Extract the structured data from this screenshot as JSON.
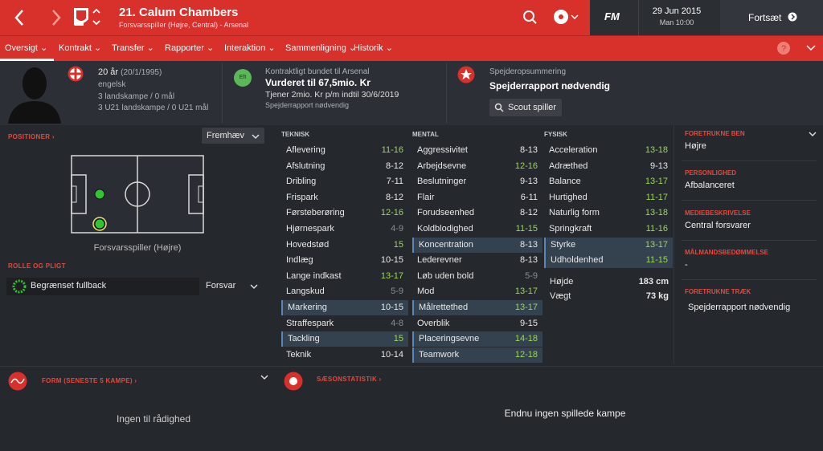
{
  "header": {
    "title": "21. Calum Chambers",
    "subtitle": "Forsvarsspiller (Højre, Central) - Arsenal",
    "logo": "FM",
    "date": "29 Jun 2015",
    "time": "Man 10:00",
    "continue": "Fortsæt"
  },
  "nav": {
    "tabs": [
      "Oversigt",
      "Kontrakt",
      "Transfer",
      "Rapporter",
      "Interaktion",
      "Sammenligning",
      "Historik"
    ]
  },
  "profile": {
    "age": "20 år",
    "dob": "(20/1/1995)",
    "nationality": "engelsk",
    "caps": "3 landskampe / 0 mål",
    "u21": "3 U21 landskampe / 0 U21 mål"
  },
  "contract": {
    "badge": "Eft",
    "label": "Kontraktligt bundet til Arsenal",
    "value": "Vurderet til 67,5mio. Kr",
    "wage": "Tjener 2mio. Kr p/m indtil 30/6/2019",
    "note": "Spejderrapport nødvendig"
  },
  "scout": {
    "label": "Spejderopsummering",
    "title": "Spejderrapport nødvendig",
    "button": "Scout spiller"
  },
  "positions": {
    "heading": "POSITIONER",
    "highlight": "Fremhæv",
    "caption": "Forsvarsspiller (Højre)"
  },
  "role": {
    "heading": "ROLLE OG PLIGT",
    "role": "Begrænset fullback",
    "duty": "Forsvar"
  },
  "attributes": [
    {
      "heading": "TEKNISK",
      "rows": [
        [
          "Aflevering",
          "11-16"
        ],
        [
          "Afslutning",
          "8-12"
        ],
        [
          "Dribling",
          "7-11"
        ],
        [
          "Frispark",
          "8-12"
        ],
        [
          "Førsteberøring",
          "12-16"
        ],
        [
          "Hjørnespark",
          "4-9"
        ],
        [
          "Hovedstød",
          "15"
        ],
        [
          "Indlæg",
          "10-15"
        ],
        [
          "Lange indkast",
          "13-17"
        ],
        [
          "Langskud",
          "5-9"
        ],
        [
          "Markering",
          "10-15"
        ],
        [
          "Straffespark",
          "4-8"
        ],
        [
          "Tackling",
          "15"
        ],
        [
          "Teknik",
          "10-14"
        ]
      ],
      "key": [
        10,
        12
      ]
    },
    {
      "heading": "MENTAL",
      "rows": [
        [
          "Aggressivitet",
          "8-13"
        ],
        [
          "Arbejdsevne",
          "12-16"
        ],
        [
          "Beslutninger",
          "9-13"
        ],
        [
          "Flair",
          "6-11"
        ],
        [
          "Forudseenhed",
          "8-12"
        ],
        [
          "Koldblodighed",
          "11-15"
        ],
        [
          "Koncentration",
          "8-13"
        ],
        [
          "Lederevner",
          "8-13"
        ],
        [
          "Løb uden bold",
          "5-9"
        ],
        [
          "Mod",
          "13-17"
        ],
        [
          "Målrettethed",
          "13-17"
        ],
        [
          "Overblik",
          "9-15"
        ],
        [
          "Placeringsevne",
          "14-18"
        ],
        [
          "Teamwork",
          "12-18"
        ]
      ],
      "key": [
        6,
        10,
        12,
        13
      ]
    },
    {
      "heading": "FYSISK",
      "rows": [
        [
          "Acceleration",
          "13-18"
        ],
        [
          "Adræthed",
          "9-13"
        ],
        [
          "Balance",
          "13-17"
        ],
        [
          "Hurtighed",
          "11-17"
        ],
        [
          "Naturlig form",
          "13-18"
        ],
        [
          "Springkraft",
          "11-16"
        ],
        [
          "Styrke",
          "13-17"
        ],
        [
          "Udholdenhed",
          "11-15"
        ]
      ],
      "key": [
        6,
        7
      ]
    }
  ],
  "physique": [
    [
      "Højde",
      "183 cm"
    ],
    [
      "Vægt",
      "73 kg"
    ]
  ],
  "side": [
    {
      "heading": "FORETRUKNE BEN",
      "value": "Højre"
    },
    {
      "heading": "PERSONLIGHED",
      "value": "Afbalanceret"
    },
    {
      "heading": "MEDIEBESKRIVELSE",
      "value": "Central forsvarer"
    },
    {
      "heading": "MÅLMANDSBEDØMMELSE",
      "value": "-"
    },
    {
      "heading": "FORETRUKNE TRÆK",
      "value": "Spejderrapport nødvendig"
    }
  ],
  "form": {
    "heading": "FORM (SENESTE 5 KAMPE)",
    "empty": "Ingen til rådighed"
  },
  "season": {
    "heading": "SÆSONSTATISTIK",
    "empty": "Endnu ingen spillede kampe"
  }
}
